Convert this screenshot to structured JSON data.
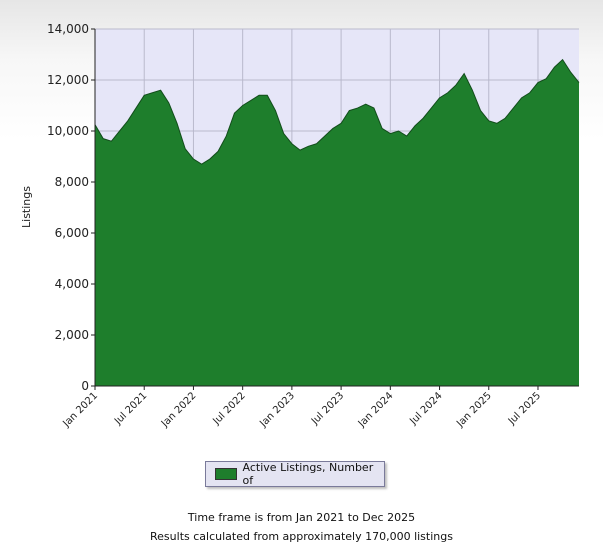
{
  "chart_data": {
    "type": "area",
    "ylabel": "Listings",
    "xlabel": "",
    "ylim": [
      0,
      14000
    ],
    "y_ticks": [
      "0",
      "2,000",
      "4,000",
      "6,000",
      "8,000",
      "10,000",
      "12,000",
      "14,000"
    ],
    "x_tick_labels": [
      "Jan 2021",
      "Jul 2021",
      "Jan 2022",
      "Jul 2022",
      "Jan 2023",
      "Jul 2023",
      "Jan 2024",
      "Jul 2024",
      "Jan 2025",
      "Jul 2025"
    ],
    "grid": true,
    "legend_position": "bottom-center",
    "series": [
      {
        "name": "Active Listings, Number of",
        "color": "#1e7e2c",
        "x_start": "Jan 2021",
        "x_end": "Dec 2025",
        "frequency": "monthly",
        "values": [
          10250,
          9700,
          9600,
          10000,
          10400,
          10900,
          11400,
          11500,
          11600,
          11100,
          10300,
          9300,
          8900,
          8700,
          8900,
          9200,
          9800,
          10700,
          11000,
          11200,
          11400,
          11400,
          10800,
          9900,
          9500,
          9250,
          9400,
          9500,
          9800,
          10100,
          10300,
          10800,
          10900,
          11050,
          10900,
          10100,
          9900,
          10000,
          9800,
          10200,
          10500,
          10900,
          11300,
          11500,
          11800,
          12250,
          11600,
          10800,
          10400,
          10300,
          10500,
          10900,
          11300,
          11500,
          11900,
          12050,
          12500,
          12800,
          12300,
          11900
        ]
      }
    ]
  },
  "legend": {
    "label": "Active Listings, Number of"
  },
  "footer": {
    "timeframe": "Time frame is from Jan 2021 to Dec 2025",
    "results": "Results calculated from approximately 170,000 listings"
  }
}
